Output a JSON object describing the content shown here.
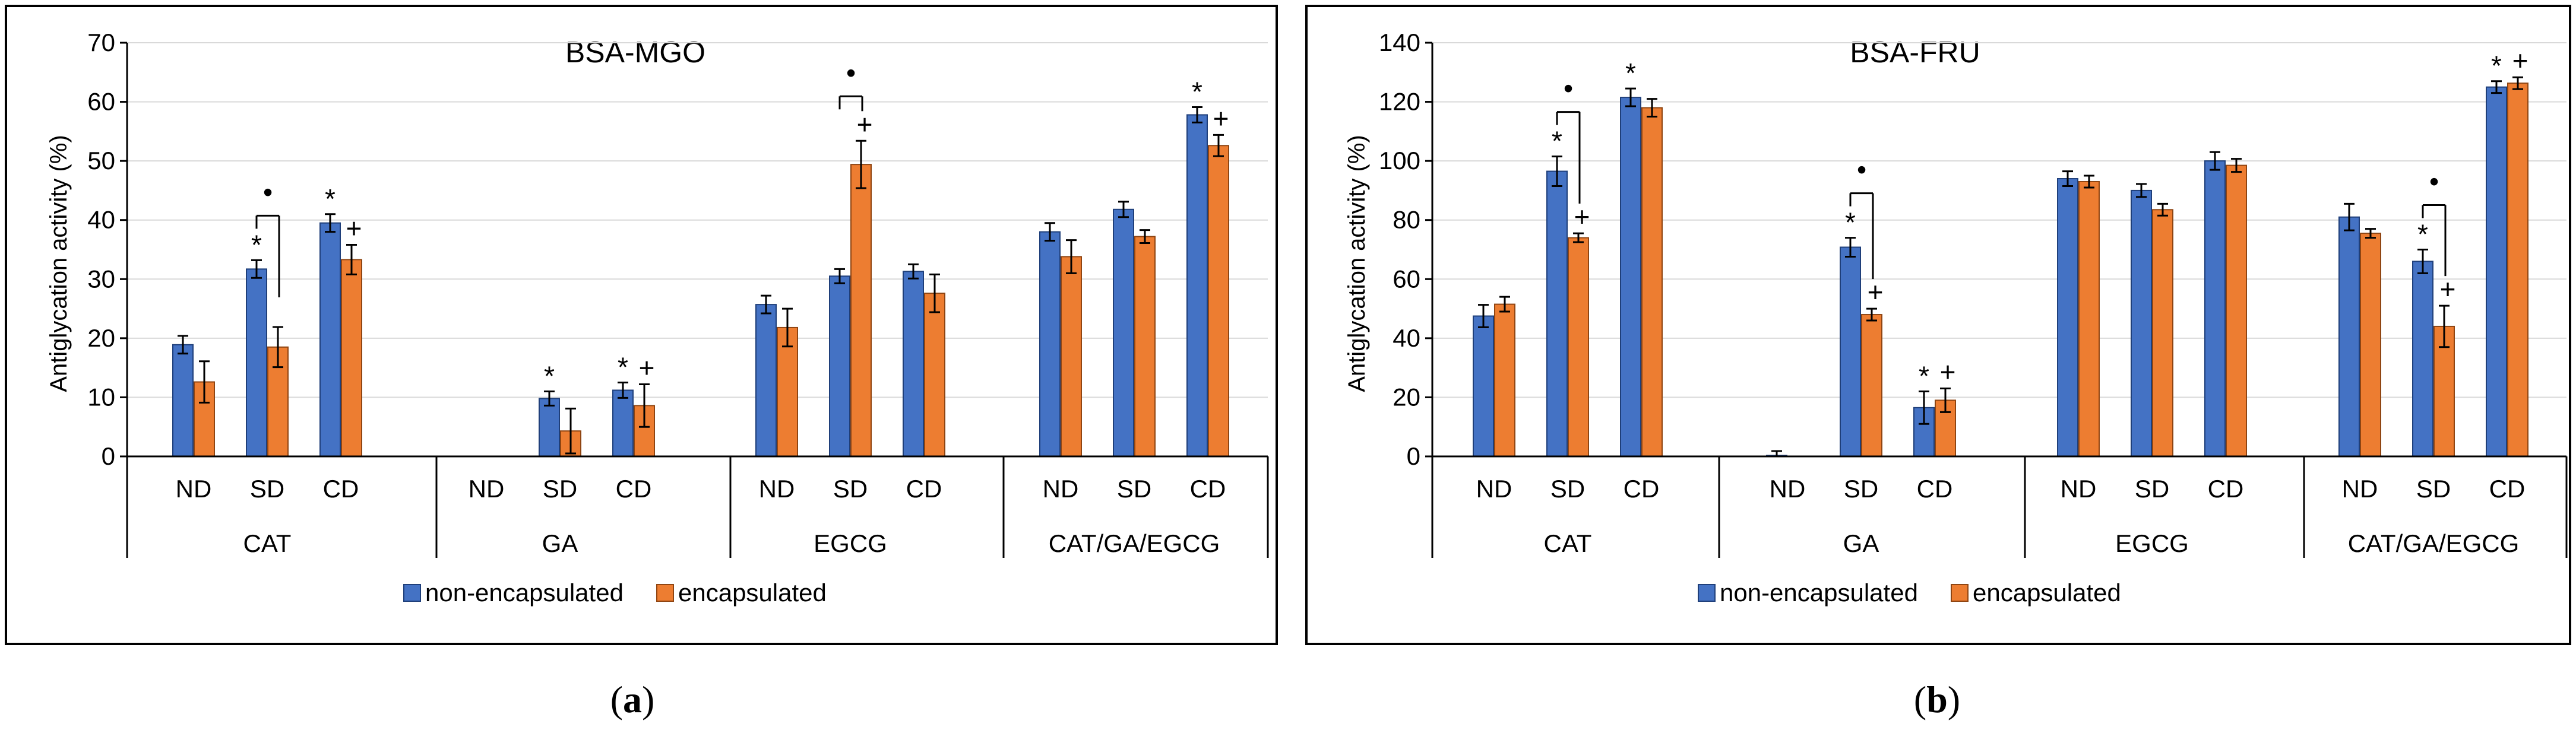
{
  "figure": {
    "legend": {
      "series1": "non-encapsulated",
      "series2": "encapsulated"
    },
    "ylabel": "Antiglycation activity (%)",
    "colors": {
      "non_encapsulated": "#4472C4",
      "encapsulated": "#ED7D31",
      "frame": "#000000"
    },
    "markers": {
      "sig_vs_nd_nonenc": "*",
      "sig_vs_nd_enc": "+",
      "sig_between_forms": "•"
    }
  },
  "chart_data": [
    {
      "type": "bar",
      "title": "BSA-MGO",
      "caption": {
        "open": "(",
        "letter": "a",
        "close": ")"
      },
      "ylabel": "Antiglycation activity (%)",
      "ylim": [
        0,
        70
      ],
      "yticks": [
        0,
        10,
        20,
        30,
        40,
        50,
        60,
        70
      ],
      "groups": [
        "CAT",
        "GA",
        "EGCG",
        "CAT/GA/EGCG"
      ],
      "subcategories": [
        "ND",
        "SD",
        "CD"
      ],
      "series": [
        {
          "name": "non-encapsulated",
          "values": [
            18.9,
            31.7,
            39.5,
            null,
            9.8,
            11.2,
            25.7,
            30.5,
            31.3,
            38.0,
            41.8,
            57.8
          ],
          "errors": [
            1.5,
            1.5,
            1.5,
            0,
            1.2,
            1.3,
            1.5,
            1.2,
            1.2,
            1.5,
            1.3,
            1.3
          ]
        },
        {
          "name": "encapsulated",
          "values": [
            12.6,
            18.5,
            33.3,
            null,
            4.3,
            8.6,
            21.8,
            49.4,
            27.6,
            33.8,
            37.2,
            52.6
          ],
          "errors": [
            3.5,
            3.4,
            2.5,
            0,
            3.8,
            3.6,
            3.2,
            4.0,
            3.2,
            2.8,
            1.1,
            1.8
          ]
        }
      ],
      "annotations": {
        "star": [
          false,
          true,
          true,
          false,
          true,
          true,
          false,
          false,
          false,
          false,
          false,
          true
        ],
        "plus": [
          false,
          false,
          true,
          false,
          false,
          true,
          false,
          true,
          false,
          false,
          false,
          true
        ],
        "bullet": [
          false,
          true,
          false,
          false,
          false,
          false,
          false,
          true,
          false,
          false,
          false,
          false
        ]
      }
    },
    {
      "type": "bar",
      "title": "BSA-FRU",
      "caption": {
        "open": "(",
        "letter": "b",
        "close": ")"
      },
      "ylabel": "Antiglycation activity (%)",
      "ylim": [
        0,
        140
      ],
      "yticks": [
        0,
        20,
        40,
        60,
        80,
        100,
        120,
        140
      ],
      "groups": [
        "CAT",
        "GA",
        "EGCG",
        "CAT/GA/EGCG"
      ],
      "subcategories": [
        "ND",
        "SD",
        "CD"
      ],
      "series": [
        {
          "name": "non-encapsulated",
          "values": [
            47.5,
            96.5,
            121.5,
            0.3,
            70.8,
            16.5,
            94.0,
            90.0,
            100.0,
            81.0,
            66.0,
            125.0
          ],
          "errors": [
            3.8,
            5.0,
            3.0,
            1.5,
            3.2,
            5.5,
            2.5,
            2.2,
            3.0,
            4.5,
            4.0,
            2.0
          ]
        },
        {
          "name": "encapsulated",
          "values": [
            51.5,
            74.0,
            118.0,
            null,
            48.0,
            19.0,
            93.0,
            83.5,
            98.5,
            75.5,
            44.0,
            126.3
          ],
          "errors": [
            2.5,
            1.5,
            3.0,
            0,
            2.0,
            4.0,
            2.0,
            2.0,
            2.2,
            1.5,
            7.0,
            2.0
          ]
        }
      ],
      "annotations": {
        "star": [
          false,
          true,
          true,
          false,
          true,
          true,
          false,
          false,
          false,
          false,
          true,
          true
        ],
        "plus": [
          false,
          true,
          false,
          false,
          true,
          true,
          false,
          false,
          false,
          false,
          true,
          true
        ],
        "bullet": [
          false,
          true,
          false,
          false,
          true,
          false,
          false,
          false,
          false,
          false,
          true,
          false
        ]
      }
    }
  ]
}
